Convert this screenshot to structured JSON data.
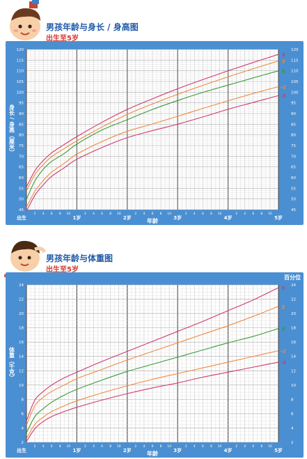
{
  "charts": {
    "height": {
      "title": "男孩年龄与身长 / 身高图",
      "subtitle": "出生至5岁"
    },
    "weight": {
      "title": "男孩年龄与体重图",
      "subtitle": "出生至5岁",
      "percentile_header": "百分位"
    }
  },
  "colors": {
    "frame_blue": "#4a8fd2",
    "curve_3": "#d2386e",
    "curve_2": "#f08a3c",
    "curve_0": "#3a9a3a",
    "curve_neg2": "#f08a3c",
    "curve_neg3": "#d2386e"
  },
  "chart_data": [
    {
      "type": "line",
      "title": "男孩年龄与身长 / 身高图",
      "subtitle": "出生至5岁",
      "xlabel": "年龄",
      "ylabel": "身长 / 身高（厘米）",
      "x_unit": "months",
      "xlim": [
        0,
        60
      ],
      "ylim": [
        45,
        120
      ],
      "x_major_labels": [
        {
          "x": 0,
          "label": "出生"
        },
        {
          "x": 12,
          "label": "1岁"
        },
        {
          "x": 24,
          "label": "2岁"
        },
        {
          "x": 36,
          "label": "3岁"
        },
        {
          "x": 48,
          "label": "4岁"
        },
        {
          "x": 60,
          "label": "5岁"
        }
      ],
      "x_minor_labels": [
        "2",
        "4",
        "6",
        "8",
        "10",
        "2",
        "4",
        "6",
        "8",
        "10",
        "2",
        "4",
        "6",
        "8",
        "10",
        "2",
        "4",
        "6",
        "8",
        "10",
        "2",
        "4",
        "6",
        "8",
        "10"
      ],
      "y_ticks": [
        45,
        50,
        55,
        60,
        65,
        70,
        75,
        80,
        85,
        90,
        95,
        100,
        105,
        110,
        115,
        120
      ],
      "grid": true,
      "legend": "right",
      "x": [
        0,
        2,
        4,
        6,
        9,
        12,
        18,
        24,
        30,
        36,
        42,
        48,
        54,
        60
      ],
      "series": [
        {
          "name": "3",
          "color": "#d2386e",
          "values": [
            55.6,
            63.2,
            68.0,
            71.6,
            75.5,
            79.2,
            85.9,
            91.9,
            96.9,
            101.6,
            105.9,
            110.0,
            113.9,
            117.7
          ]
        },
        {
          "name": "2",
          "color": "#f08a3c",
          "values": [
            53.7,
            61.4,
            66.1,
            69.8,
            73.6,
            77.2,
            83.7,
            89.6,
            94.5,
            99.0,
            103.2,
            107.2,
            111.0,
            114.6
          ]
        },
        {
          "name": "0",
          "color": "#3a9a3a",
          "values": [
            49.9,
            58.4,
            63.9,
            67.6,
            71.3,
            75.7,
            82.3,
            87.1,
            91.9,
            96.1,
            99.9,
            103.3,
            106.7,
            110.0
          ]
        },
        {
          "name": "-2",
          "color": "#f08a3c",
          "values": [
            46.1,
            53.6,
            58.6,
            62.6,
            66.7,
            71.0,
            76.9,
            81.7,
            85.1,
            88.7,
            92.4,
            96.0,
            99.4,
            102.6
          ]
        },
        {
          "name": "-3",
          "color": "#d2386e",
          "values": [
            44.2,
            51.7,
            56.6,
            60.6,
            64.6,
            68.6,
            74.1,
            78.7,
            82.0,
            85.0,
            88.4,
            92.0,
            95.2,
            98.4
          ]
        }
      ]
    },
    {
      "type": "line",
      "title": "男孩年龄与体重图",
      "subtitle": "出生至5岁",
      "xlabel": "年龄",
      "ylabel": "体重（千克）",
      "x_unit": "months",
      "xlim": [
        0,
        60
      ],
      "ylim": [
        2,
        24
      ],
      "x_major_labels": [
        {
          "x": 0,
          "label": "出生"
        },
        {
          "x": 12,
          "label": "1岁"
        },
        {
          "x": 24,
          "label": "2岁"
        },
        {
          "x": 36,
          "label": "3岁"
        },
        {
          "x": 48,
          "label": "4岁"
        },
        {
          "x": 60,
          "label": "5岁"
        }
      ],
      "x_minor_labels": [
        "2",
        "4",
        "6",
        "8",
        "10",
        "2",
        "4",
        "6",
        "8",
        "10",
        "2",
        "4",
        "6",
        "8",
        "10",
        "2",
        "4",
        "6",
        "8",
        "10",
        "2",
        "4",
        "6",
        "8",
        "10"
      ],
      "y_ticks": [
        2,
        4,
        6,
        8,
        10,
        12,
        14,
        16,
        18,
        20,
        22,
        24
      ],
      "grid": true,
      "legend": "right",
      "x": [
        0,
        2,
        4,
        6,
        9,
        12,
        18,
        24,
        30,
        36,
        42,
        48,
        54,
        60
      ],
      "series": [
        {
          "name": "3",
          "color": "#d2386e",
          "values": [
            5.0,
            7.9,
            9.1,
            10.0,
            11.0,
            11.8,
            13.3,
            14.7,
            16.1,
            17.5,
            18.9,
            20.4,
            21.9,
            23.6
          ]
        },
        {
          "name": "2",
          "color": "#f08a3c",
          "values": [
            4.4,
            7.1,
            8.3,
            9.1,
            10.0,
            10.9,
            12.2,
            13.5,
            14.7,
            15.9,
            17.1,
            18.3,
            19.6,
            21.0
          ]
        },
        {
          "name": "0",
          "color": "#3a9a3a",
          "values": [
            3.3,
            5.6,
            6.7,
            7.6,
            8.6,
            9.4,
            10.7,
            11.9,
            12.9,
            13.9,
            14.9,
            15.9,
            16.8,
            17.9
          ]
        },
        {
          "name": "-2",
          "color": "#f08a3c",
          "values": [
            2.5,
            4.5,
            5.5,
            6.3,
            7.1,
            7.8,
            8.9,
            9.9,
            10.8,
            11.6,
            12.4,
            13.2,
            14.0,
            14.8
          ]
        },
        {
          "name": "-3",
          "color": "#d2386e",
          "values": [
            2.1,
            3.9,
            4.9,
            5.6,
            6.3,
            6.9,
            7.9,
            8.8,
            9.6,
            10.3,
            11.1,
            11.8,
            12.5,
            13.2
          ]
        }
      ]
    }
  ]
}
